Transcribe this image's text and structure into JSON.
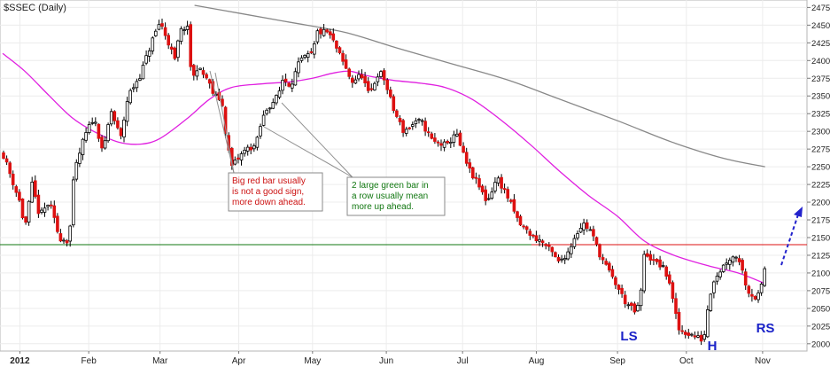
{
  "chart_data": {
    "type": "candlestick",
    "title": "$SSEC (Daily)",
    "ylim": [
      1996,
      2478
    ],
    "y_ticks": [
      2000,
      2025,
      2050,
      2075,
      2100,
      2125,
      2150,
      2175,
      2200,
      2225,
      2250,
      2275,
      2300,
      2325,
      2350,
      2375,
      2400,
      2425,
      2450,
      2475
    ],
    "x_ticks": [
      {
        "label": "2012",
        "date": "2012-01-04",
        "bold": true
      },
      {
        "label": "Feb",
        "date": "2012-02-01",
        "bold": false
      },
      {
        "label": "Mar",
        "date": "2012-03-01",
        "bold": false
      },
      {
        "label": "Apr",
        "date": "2012-04-02",
        "bold": false
      },
      {
        "label": "May",
        "date": "2012-05-02",
        "bold": false
      },
      {
        "label": "Jun",
        "date": "2012-06-01",
        "bold": false
      },
      {
        "label": "Jul",
        "date": "2012-07-02",
        "bold": false
      },
      {
        "label": "Aug",
        "date": "2012-08-01",
        "bold": false
      },
      {
        "label": "Sep",
        "date": "2012-09-03",
        "bold": false
      },
      {
        "label": "Oct",
        "date": "2012-10-01",
        "bold": false
      },
      {
        "label": "Nov",
        "date": "2012-11-01",
        "bold": false
      }
    ],
    "close_path": [
      [
        "2011-12-28",
        2270
      ],
      [
        "2012-01-04",
        2200
      ],
      [
        "2012-01-06",
        2163
      ],
      [
        "2012-01-09",
        2225
      ],
      [
        "2012-01-12",
        2180
      ],
      [
        "2012-01-16",
        2200
      ],
      [
        "2012-01-20",
        2150
      ],
      [
        "2012-01-24",
        2145
      ],
      [
        "2012-01-26",
        2240
      ],
      [
        "2012-01-30",
        2290
      ],
      [
        "2012-02-03",
        2320
      ],
      [
        "2012-02-07",
        2270
      ],
      [
        "2012-02-10",
        2330
      ],
      [
        "2012-02-14",
        2290
      ],
      [
        "2012-02-17",
        2350
      ],
      [
        "2012-02-22",
        2380
      ],
      [
        "2012-02-27",
        2430
      ],
      [
        "2012-03-01",
        2455
      ],
      [
        "2012-03-05",
        2420
      ],
      [
        "2012-03-07",
        2400
      ],
      [
        "2012-03-09",
        2440
      ],
      [
        "2012-03-12",
        2450
      ],
      [
        "2012-03-14",
        2370
      ],
      [
        "2012-03-16",
        2390
      ],
      [
        "2012-03-20",
        2375
      ],
      [
        "2012-03-23",
        2350
      ],
      [
        "2012-03-26",
        2345
      ],
      [
        "2012-03-28",
        2290
      ],
      [
        "2012-03-30",
        2250
      ],
      [
        "2012-04-05",
        2275
      ],
      [
        "2012-04-09",
        2280
      ],
      [
        "2012-04-11",
        2310
      ],
      [
        "2012-04-13",
        2330
      ],
      [
        "2012-04-18",
        2350
      ],
      [
        "2012-04-20",
        2375
      ],
      [
        "2012-04-23",
        2365
      ],
      [
        "2012-04-27",
        2400
      ],
      [
        "2012-05-02",
        2410
      ],
      [
        "2012-05-04",
        2440
      ],
      [
        "2012-05-08",
        2440
      ],
      [
        "2012-05-10",
        2430
      ],
      [
        "2012-05-14",
        2400
      ],
      [
        "2012-05-18",
        2370
      ],
      [
        "2012-05-22",
        2380
      ],
      [
        "2012-05-25",
        2350
      ],
      [
        "2012-05-29",
        2385
      ],
      [
        "2012-05-31",
        2375
      ],
      [
        "2012-06-04",
        2330
      ],
      [
        "2012-06-08",
        2300
      ],
      [
        "2012-06-12",
        2310
      ],
      [
        "2012-06-15",
        2315
      ],
      [
        "2012-06-20",
        2285
      ],
      [
        "2012-06-26",
        2280
      ],
      [
        "2012-06-29",
        2300
      ],
      [
        "2012-07-04",
        2250
      ],
      [
        "2012-07-09",
        2220
      ],
      [
        "2012-07-12",
        2200
      ],
      [
        "2012-07-16",
        2235
      ],
      [
        "2012-07-20",
        2210
      ],
      [
        "2012-07-25",
        2170
      ],
      [
        "2012-07-31",
        2150
      ],
      [
        "2012-08-03",
        2145
      ],
      [
        "2012-08-07",
        2130
      ],
      [
        "2012-08-10",
        2115
      ],
      [
        "2012-08-14",
        2130
      ],
      [
        "2012-08-17",
        2155
      ],
      [
        "2012-08-20",
        2170
      ],
      [
        "2012-08-23",
        2160
      ],
      [
        "2012-08-27",
        2125
      ],
      [
        "2012-08-30",
        2105
      ],
      [
        "2012-09-03",
        2080
      ],
      [
        "2012-09-06",
        2060
      ],
      [
        "2012-09-10",
        2045
      ],
      [
        "2012-09-12",
        2055
      ],
      [
        "2012-09-14",
        2130
      ],
      [
        "2012-09-18",
        2115
      ],
      [
        "2012-09-21",
        2110
      ],
      [
        "2012-09-24",
        2090
      ],
      [
        "2012-09-26",
        2050
      ],
      [
        "2012-09-28",
        2020
      ],
      [
        "2012-10-08",
        2005
      ],
      [
        "2012-10-10",
        2060
      ],
      [
        "2012-10-12",
        2090
      ],
      [
        "2012-10-16",
        2110
      ],
      [
        "2012-10-18",
        2120
      ],
      [
        "2012-10-22",
        2125
      ],
      [
        "2012-10-24",
        2100
      ],
      [
        "2012-10-26",
        2075
      ],
      [
        "2012-10-29",
        2065
      ],
      [
        "2012-10-31",
        2070
      ],
      [
        "2012-11-02",
        2110
      ]
    ],
    "sma50": [
      [
        "2011-12-28",
        2410
      ],
      [
        "2012-01-06",
        2385
      ],
      [
        "2012-01-16",
        2350
      ],
      [
        "2012-01-25",
        2320
      ],
      [
        "2012-02-03",
        2300
      ],
      [
        "2012-02-13",
        2285
      ],
      [
        "2012-02-22",
        2282
      ],
      [
        "2012-03-01",
        2290
      ],
      [
        "2012-03-12",
        2318
      ],
      [
        "2012-03-21",
        2345
      ],
      [
        "2012-03-30",
        2362
      ],
      [
        "2012-04-11",
        2367
      ],
      [
        "2012-04-23",
        2370
      ],
      [
        "2012-05-02",
        2375
      ],
      [
        "2012-05-10",
        2382
      ],
      [
        "2012-05-17",
        2385
      ],
      [
        "2012-05-25",
        2378
      ],
      [
        "2012-06-04",
        2372
      ],
      [
        "2012-06-15",
        2368
      ],
      [
        "2012-06-25",
        2362
      ],
      [
        "2012-07-06",
        2345
      ],
      [
        "2012-07-18",
        2315
      ],
      [
        "2012-07-30",
        2280
      ],
      [
        "2012-08-10",
        2245
      ],
      [
        "2012-08-22",
        2210
      ],
      [
        "2012-09-03",
        2180
      ],
      [
        "2012-09-14",
        2145
      ],
      [
        "2012-09-26",
        2125
      ],
      [
        "2012-10-10",
        2110
      ],
      [
        "2012-10-22",
        2100
      ],
      [
        "2012-11-02",
        2085
      ]
    ],
    "sma200": [
      [
        "2012-03-15",
        2478
      ],
      [
        "2012-04-02",
        2467
      ],
      [
        "2012-04-23",
        2454
      ],
      [
        "2012-05-15",
        2440
      ],
      [
        "2012-06-05",
        2418
      ],
      [
        "2012-06-27",
        2396
      ],
      [
        "2012-07-20",
        2373
      ],
      [
        "2012-08-10",
        2346
      ],
      [
        "2012-09-03",
        2315
      ],
      [
        "2012-09-25",
        2285
      ],
      [
        "2012-10-16",
        2262
      ],
      [
        "2012-11-02",
        2250
      ]
    ],
    "support_green": {
      "value": 2140,
      "color": "#117711"
    },
    "neckline_red": {
      "value": 2140,
      "from": "2012-07-30",
      "color": "#dd1111"
    },
    "series_colors": {
      "up": "#ffffff",
      "down": "#dd1111",
      "wick": "#000000",
      "sma50": "#e020e0",
      "sma200": "#888888",
      "forecast_arrow": "#2222cc"
    },
    "annotations": [
      {
        "id": "red-bar-note",
        "lines": [
          "Big red bar usually",
          "is not a good sign,",
          "more down ahead."
        ],
        "color": "#cc1111"
      },
      {
        "id": "green-bars-note",
        "lines": [
          "2 large green bar in",
          "a row usually mean",
          "more up ahead."
        ],
        "color": "#117711"
      }
    ],
    "pattern_labels": [
      {
        "text": "LS",
        "date": "2012-09-11",
        "value": 2010
      },
      {
        "text": "H",
        "date": "2012-10-09",
        "value": 1999
      },
      {
        "text": "RS",
        "date": "2012-10-30",
        "value": 2034
      }
    ]
  }
}
